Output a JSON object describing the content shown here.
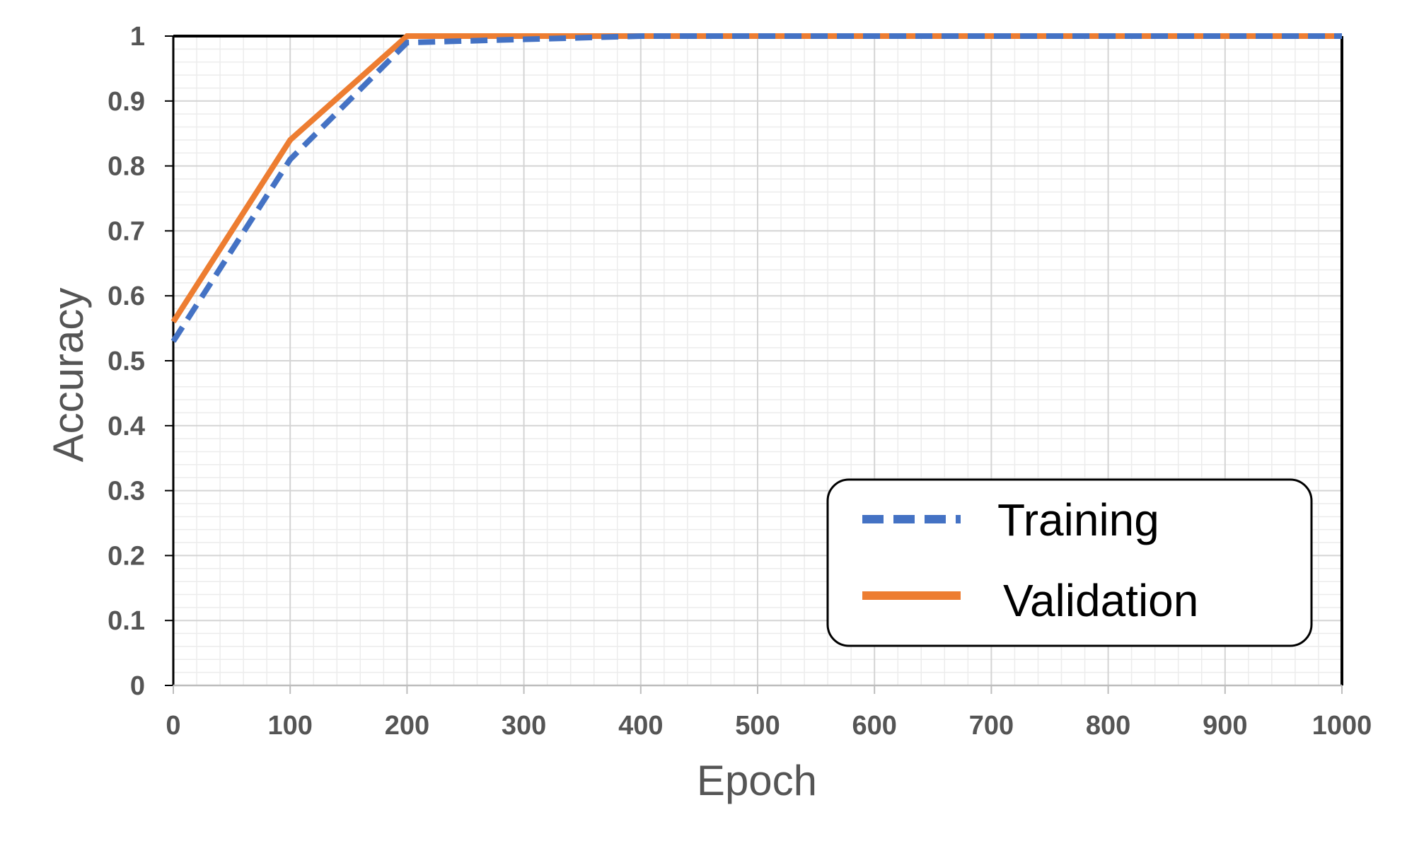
{
  "chart_data": {
    "type": "line",
    "title": "",
    "xlabel": "Epoch",
    "ylabel": "Accuracy",
    "xlim": [
      0,
      1000
    ],
    "ylim": [
      0,
      1
    ],
    "x_ticks": [
      "0",
      "100",
      "200",
      "300",
      "400",
      "500",
      "600",
      "700",
      "800",
      "900",
      "1000"
    ],
    "y_ticks": [
      "0",
      "0.1",
      "0.2",
      "0.3",
      "0.4",
      "0.5",
      "0.6",
      "0.7",
      "0.8",
      "0.9",
      "1"
    ],
    "grid": true,
    "legend_position": "bottom-right",
    "series": [
      {
        "name": "Training",
        "style": "dashed",
        "color": "#4472C4",
        "x": [
          0,
          100,
          200,
          400,
          1000
        ],
        "y": [
          0.53,
          0.81,
          0.99,
          1.0,
          1.0
        ]
      },
      {
        "name": "Validation",
        "style": "solid",
        "color": "#ED7D31",
        "x": [
          0,
          100,
          200,
          1000
        ],
        "y": [
          0.56,
          0.84,
          1.0,
          1.0
        ]
      }
    ]
  }
}
